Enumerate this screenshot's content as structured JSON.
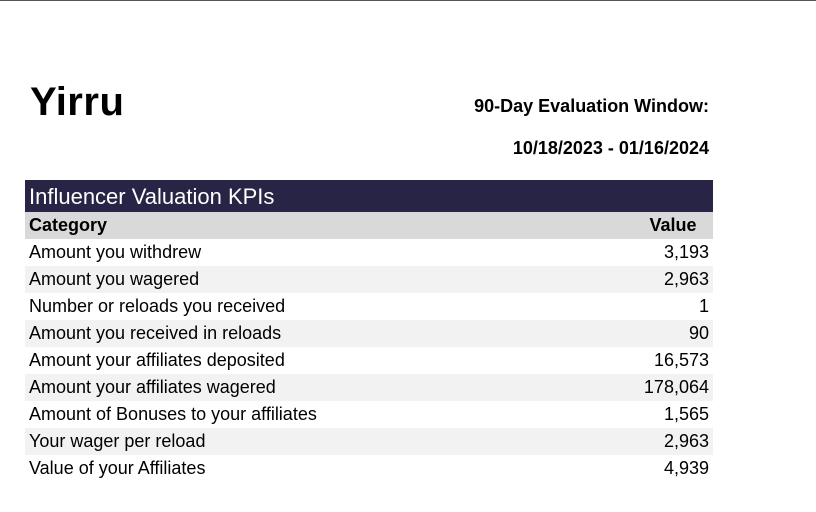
{
  "report": {
    "name": "Yirru",
    "window_label": "90-Day Evaluation Window:",
    "window_range": "10/18/2023 - 01/16/2024"
  },
  "table": {
    "title": "Influencer Valuation KPIs",
    "headers": {
      "category": "Category",
      "value": "Value"
    },
    "rows": [
      {
        "category": "Amount you withdrew",
        "value": "3,193"
      },
      {
        "category": "Amount you wagered",
        "value": "2,963"
      },
      {
        "category": "Number or reloads you received",
        "value": "1"
      },
      {
        "category": "Amount you received in reloads",
        "value": "90"
      },
      {
        "category": "Amount your affiliates deposited",
        "value": "16,573"
      },
      {
        "category": "Amount your affiliates wagered",
        "value": "178,064"
      },
      {
        "category": "Amount of Bonuses to your affiliates",
        "value": "1,565"
      },
      {
        "category": "Your wager per reload",
        "value": "2,963"
      },
      {
        "category": "Value of your Affiliates",
        "value": "4,939"
      }
    ]
  },
  "colors": {
    "band": "#272446",
    "header_bg": "#d9d9d9",
    "alt_row": "#f2f2f2"
  }
}
